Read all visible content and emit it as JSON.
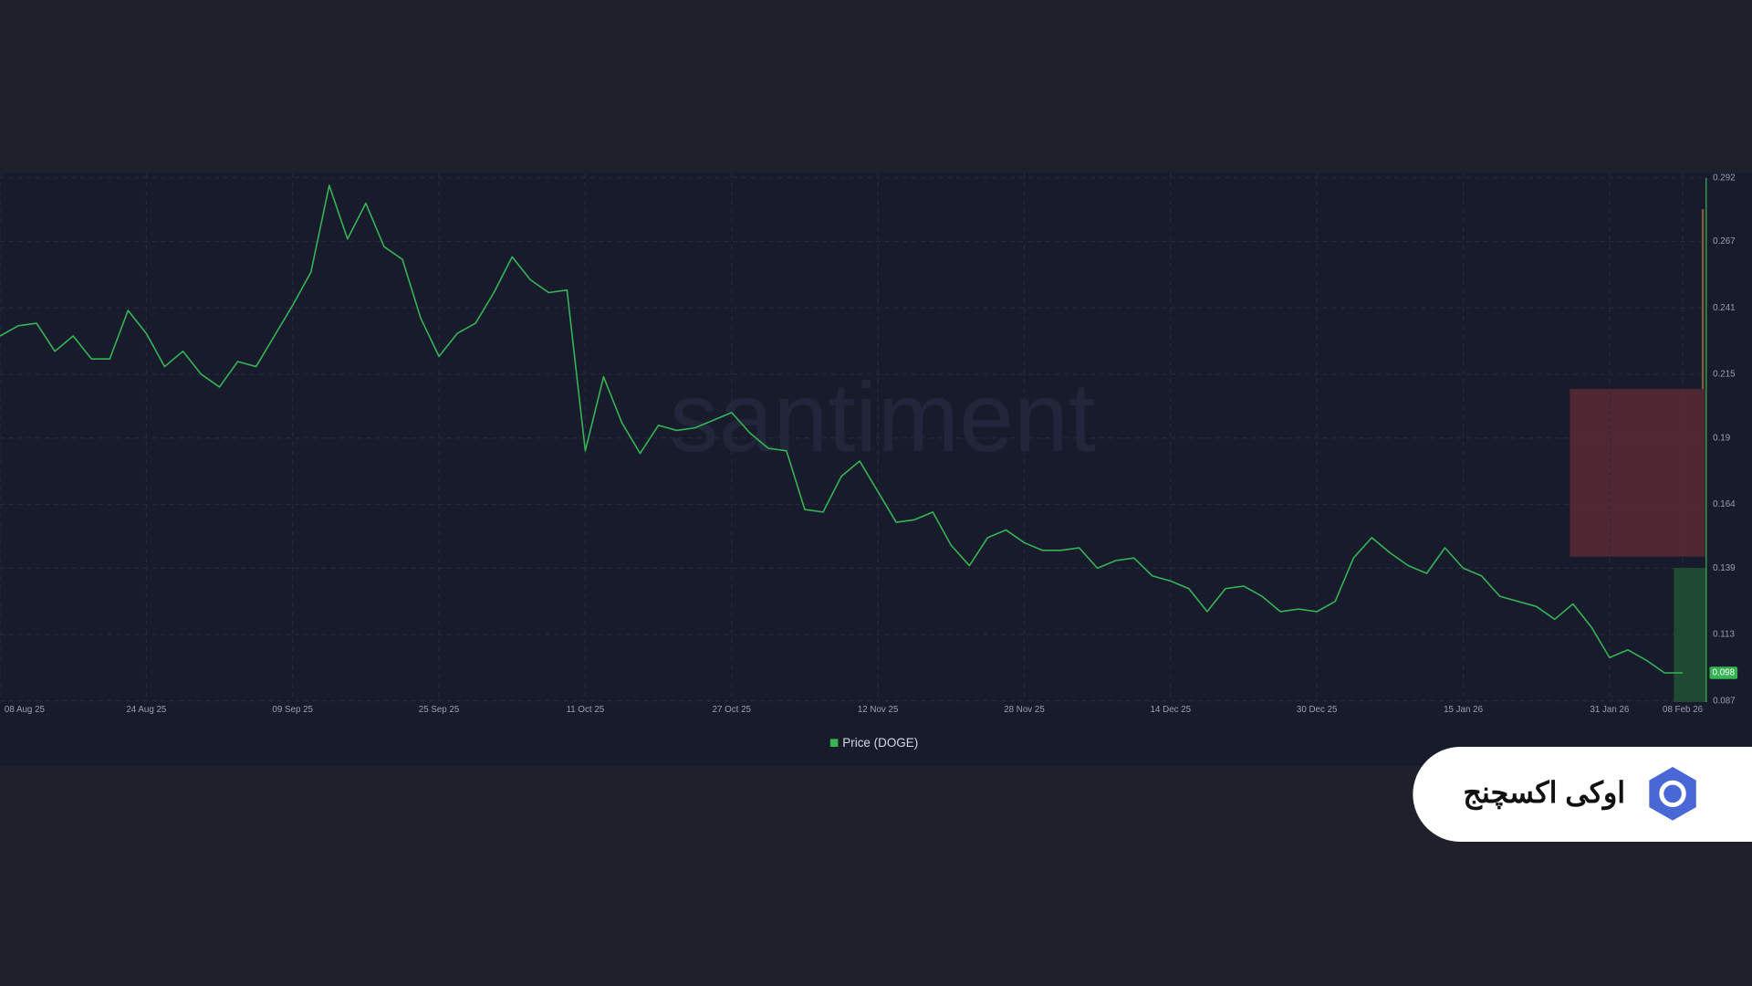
{
  "chart_data": {
    "type": "line",
    "watermark": "santiment",
    "x": [
      "08 Aug 25",
      "10 Aug 25",
      "12 Aug 25",
      "14 Aug 25",
      "16 Aug 25",
      "18 Aug 25",
      "20 Aug 25",
      "22 Aug 25",
      "24 Aug 25",
      "26 Aug 25",
      "28 Aug 25",
      "30 Aug 25",
      "01 Sep 25",
      "03 Sep 25",
      "05 Sep 25",
      "07 Sep 25",
      "09 Sep 25",
      "11 Sep 25",
      "13 Sep 25",
      "15 Sep 25",
      "17 Sep 25",
      "19 Sep 25",
      "21 Sep 25",
      "23 Sep 25",
      "25 Sep 25",
      "27 Sep 25",
      "29 Sep 25",
      "01 Oct 25",
      "03 Oct 25",
      "05 Oct 25",
      "07 Oct 25",
      "09 Oct 25",
      "11 Oct 25",
      "13 Oct 25",
      "15 Oct 25",
      "17 Oct 25",
      "19 Oct 25",
      "21 Oct 25",
      "23 Oct 25",
      "25 Oct 25",
      "27 Oct 25",
      "29 Oct 25",
      "31 Oct 25",
      "02 Nov 25",
      "04 Nov 25",
      "06 Nov 25",
      "08 Nov 25",
      "10 Nov 25",
      "12 Nov 25",
      "14 Nov 25",
      "16 Nov 25",
      "18 Nov 25",
      "20 Nov 25",
      "22 Nov 25",
      "24 Nov 25",
      "26 Nov 25",
      "28 Nov 25",
      "30 Nov 25",
      "02 Dec 25",
      "04 Dec 25",
      "06 Dec 25",
      "08 Dec 25",
      "10 Dec 25",
      "12 Dec 25",
      "14 Dec 25",
      "16 Dec 25",
      "18 Dec 25",
      "20 Dec 25",
      "22 Dec 25",
      "24 Dec 25",
      "26 Dec 25",
      "28 Dec 25",
      "30 Dec 25",
      "01 Jan 26",
      "03 Jan 26",
      "05 Jan 26",
      "07 Jan 26",
      "09 Jan 26",
      "11 Jan 26",
      "13 Jan 26",
      "15 Jan 26",
      "17 Jan 26",
      "19 Jan 26",
      "21 Jan 26",
      "23 Jan 26",
      "25 Jan 26",
      "27 Jan 26",
      "29 Jan 26",
      "31 Jan 26",
      "02 Feb 26",
      "04 Feb 26",
      "06 Feb 26",
      "08 Feb 26"
    ],
    "series": [
      {
        "name": "Price (DOGE)",
        "color": "#35b454",
        "values": [
          0.23,
          0.234,
          0.235,
          0.224,
          0.23,
          0.221,
          0.221,
          0.24,
          0.231,
          0.218,
          0.224,
          0.215,
          0.21,
          0.22,
          0.218,
          0.23,
          0.242,
          0.255,
          0.289,
          0.268,
          0.282,
          0.265,
          0.26,
          0.237,
          0.222,
          0.231,
          0.235,
          0.247,
          0.261,
          0.252,
          0.247,
          0.248,
          0.185,
          0.214,
          0.196,
          0.184,
          0.195,
          0.193,
          0.194,
          0.197,
          0.2,
          0.192,
          0.186,
          0.185,
          0.162,
          0.161,
          0.175,
          0.181,
          0.169,
          0.157,
          0.158,
          0.161,
          0.148,
          0.14,
          0.151,
          0.154,
          0.149,
          0.146,
          0.146,
          0.147,
          0.139,
          0.142,
          0.143,
          0.136,
          0.134,
          0.131,
          0.122,
          0.131,
          0.132,
          0.128,
          0.122,
          0.123,
          0.122,
          0.126,
          0.143,
          0.151,
          0.145,
          0.14,
          0.137,
          0.147,
          0.139,
          0.136,
          0.128,
          0.126,
          0.124,
          0.119,
          0.125,
          0.116,
          0.104,
          0.107,
          0.103,
          0.098,
          0.098
        ]
      }
    ],
    "last_value": 0.098,
    "xticks": [
      "08 Aug 25",
      "24 Aug 25",
      "09 Sep 25",
      "25 Sep 25",
      "11 Oct 25",
      "27 Oct 25",
      "12 Nov 25",
      "28 Nov 25",
      "14 Dec 25",
      "30 Dec 25",
      "15 Jan 26",
      "31 Jan 26",
      "08 Feb 26"
    ],
    "ylim": [
      0.087,
      0.292
    ],
    "yticks": [
      0.087,
      0.113,
      0.139,
      0.164,
      0.19,
      0.215,
      0.241,
      0.267,
      0.292
    ],
    "grid": true
  },
  "brand": "اوکی اکسچنج"
}
